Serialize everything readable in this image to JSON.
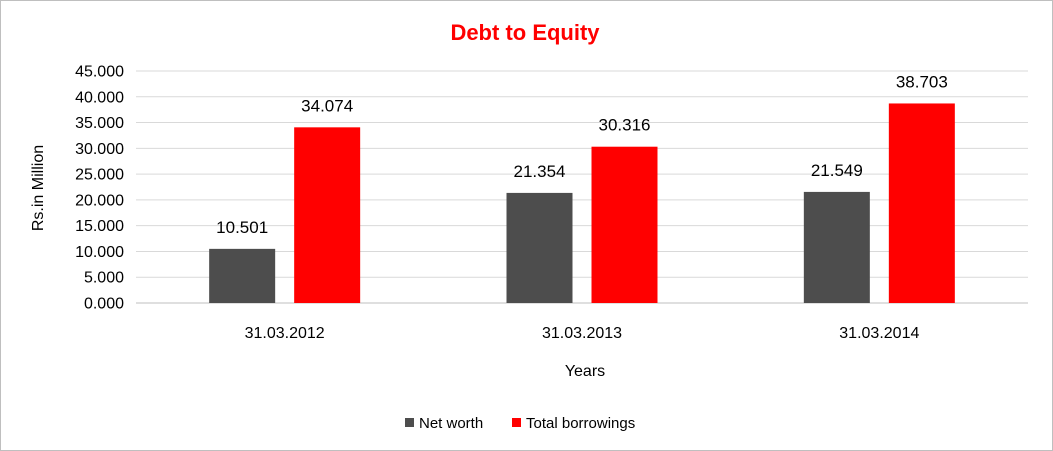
{
  "chart_data": {
    "type": "bar",
    "title": "Debt to Equity",
    "xlabel": "Years",
    "ylabel": "Rs.in Million",
    "categories": [
      "31.03.2012",
      "31.03.2013",
      "31.03.2014"
    ],
    "series": [
      {
        "name": "Net worth",
        "color": "#4d4d4d",
        "values": [
          10.501,
          21.354,
          21.549
        ],
        "labels": [
          "10.501",
          "21.354",
          "21.549"
        ]
      },
      {
        "name": "Total borrowings",
        "color": "#ff0000",
        "values": [
          34.074,
          30.316,
          38.703
        ],
        "labels": [
          "34.074",
          "30.316",
          "38.703"
        ]
      }
    ],
    "ylim": [
      0,
      45
    ],
    "ytick_values": [
      0,
      5,
      10,
      15,
      20,
      25,
      30,
      35,
      40,
      45
    ],
    "ytick_labels": [
      "0.000",
      "5.000",
      "10.000",
      "15.000",
      "20.000",
      "25.000",
      "30.000",
      "35.000",
      "40.000",
      "45.000"
    ],
    "grid": true,
    "legend_position": "bottom"
  }
}
